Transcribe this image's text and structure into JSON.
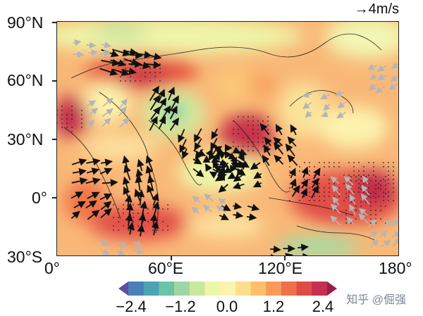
{
  "map": {
    "lat_labels": [
      "90°N",
      "60°N",
      "30°N",
      "0°",
      "30°S"
    ],
    "lon_labels": [
      "0°",
      "60°E",
      "120°E",
      "180°"
    ],
    "reference_vector": "→4m/s"
  },
  "colorbar": {
    "tick_labels": [
      "−2.4",
      "−1.2",
      "0.0",
      "1.2",
      "2.4"
    ],
    "colors": [
      "#5a4fa3",
      "#4a7fb8",
      "#4ba4b4",
      "#6cc3a5",
      "#9fd7a4",
      "#c8e89e",
      "#eef6a8",
      "#fcf3ae",
      "#fcdf8d",
      "#fbbf6e",
      "#f79a5a",
      "#ef7049",
      "#de4c48",
      "#c4304d",
      "#9c1b4d"
    ]
  },
  "watermark": "知乎 @倔强"
}
